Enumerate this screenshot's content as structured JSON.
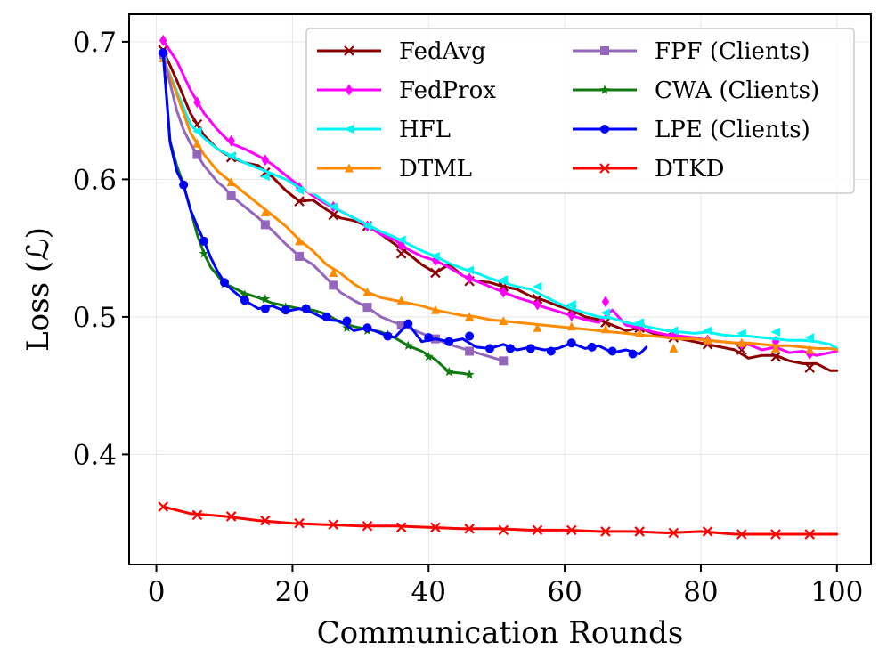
{
  "chart_data": {
    "type": "line",
    "title": "",
    "xlabel": "Communication Rounds",
    "ylabel": "Loss (ℒ)",
    "xlim": [
      -4,
      105
    ],
    "ylim": [
      0.32,
      0.72
    ],
    "xticks": [
      0,
      20,
      40,
      60,
      80,
      100
    ],
    "xtick_labels": [
      "0",
      "20",
      "40",
      "60",
      "80",
      "100"
    ],
    "yticks": [
      0.4,
      0.5,
      0.6,
      0.7
    ],
    "ytick_labels": [
      "0.4",
      "0.5",
      "0.6",
      "0.7"
    ],
    "grid": true,
    "legend_position": "top-right",
    "series": [
      {
        "name": "FedAvg",
        "color": "#8b0000",
        "marker": "x",
        "x": [
          1,
          3,
          5,
          7,
          9,
          11,
          13,
          15,
          17,
          19,
          21,
          23,
          25,
          27,
          29,
          31,
          33,
          35,
          37,
          39,
          41,
          43,
          45,
          47,
          49,
          51,
          53,
          55,
          57,
          59,
          61,
          63,
          65,
          67,
          69,
          71,
          73,
          75,
          77,
          79,
          81,
          83,
          85,
          87,
          89,
          91,
          93,
          95,
          97,
          99,
          100
        ],
        "y": [
          0.694,
          0.672,
          0.648,
          0.632,
          0.622,
          0.616,
          0.612,
          0.61,
          0.602,
          0.592,
          0.584,
          0.585,
          0.578,
          0.572,
          0.57,
          0.566,
          0.56,
          0.553,
          0.546,
          0.538,
          0.532,
          0.538,
          0.53,
          0.526,
          0.525,
          0.522,
          0.52,
          0.515,
          0.512,
          0.508,
          0.505,
          0.5,
          0.498,
          0.494,
          0.49,
          0.492,
          0.488,
          0.485,
          0.484,
          0.482,
          0.48,
          0.478,
          0.476,
          0.47,
          0.472,
          0.472,
          0.468,
          0.466,
          0.466,
          0.461,
          0.461
        ],
        "marker_x": [
          1,
          6,
          11,
          16,
          21,
          26,
          31,
          36,
          41,
          46,
          51,
          56,
          61,
          66,
          71,
          76,
          81,
          86,
          91,
          96
        ],
        "marker_y": [
          0.694,
          0.64,
          0.616,
          0.605,
          0.584,
          0.574,
          0.566,
          0.546,
          0.532,
          0.526,
          0.522,
          0.513,
          0.505,
          0.496,
          0.492,
          0.485,
          0.48,
          0.476,
          0.471,
          0.463
        ]
      },
      {
        "name": "FedProx",
        "color": "#ff00ff",
        "marker": "diamond",
        "x": [
          1,
          3,
          5,
          7,
          9,
          11,
          13,
          15,
          17,
          19,
          21,
          23,
          25,
          27,
          29,
          31,
          33,
          35,
          37,
          39,
          41,
          43,
          45,
          47,
          49,
          51,
          53,
          55,
          57,
          59,
          61,
          63,
          65,
          67,
          69,
          71,
          73,
          75,
          77,
          79,
          81,
          83,
          85,
          87,
          89,
          91,
          93,
          95,
          97,
          99,
          100
        ],
        "y": [
          0.701,
          0.686,
          0.665,
          0.648,
          0.636,
          0.626,
          0.622,
          0.617,
          0.611,
          0.603,
          0.595,
          0.588,
          0.582,
          0.577,
          0.572,
          0.566,
          0.56,
          0.556,
          0.549,
          0.544,
          0.541,
          0.536,
          0.53,
          0.526,
          0.522,
          0.518,
          0.514,
          0.511,
          0.507,
          0.504,
          0.501,
          0.498,
          0.496,
          0.505,
          0.494,
          0.492,
          0.489,
          0.487,
          0.486,
          0.485,
          0.483,
          0.482,
          0.481,
          0.48,
          0.476,
          0.478,
          0.474,
          0.475,
          0.472,
          0.474,
          0.475
        ],
        "marker_x": [
          1,
          6,
          11,
          16,
          21,
          26,
          31,
          36,
          41,
          46,
          51,
          56,
          61,
          66,
          71,
          76,
          81,
          86,
          91,
          96
        ],
        "marker_y": [
          0.701,
          0.656,
          0.628,
          0.614,
          0.594,
          0.58,
          0.566,
          0.552,
          0.541,
          0.528,
          0.518,
          0.509,
          0.501,
          0.511,
          0.492,
          0.487,
          0.483,
          0.48,
          0.482,
          0.473
        ]
      },
      {
        "name": "HFL",
        "color": "#00f5f5",
        "marker": "triangle-left",
        "x": [
          1,
          3,
          5,
          7,
          9,
          11,
          13,
          15,
          17,
          19,
          21,
          23,
          25,
          27,
          29,
          31,
          33,
          35,
          37,
          39,
          41,
          43,
          45,
          47,
          49,
          51,
          53,
          55,
          57,
          59,
          61,
          63,
          65,
          67,
          69,
          71,
          73,
          75,
          77,
          79,
          81,
          83,
          85,
          87,
          89,
          91,
          93,
          95,
          97,
          99,
          100
        ],
        "y": [
          0.688,
          0.664,
          0.64,
          0.63,
          0.622,
          0.617,
          0.612,
          0.608,
          0.604,
          0.6,
          0.594,
          0.59,
          0.583,
          0.577,
          0.572,
          0.567,
          0.562,
          0.558,
          0.553,
          0.548,
          0.544,
          0.539,
          0.535,
          0.532,
          0.528,
          0.525,
          0.522,
          0.52,
          0.515,
          0.51,
          0.506,
          0.503,
          0.5,
          0.499,
          0.496,
          0.494,
          0.492,
          0.49,
          0.489,
          0.488,
          0.489,
          0.487,
          0.486,
          0.486,
          0.485,
          0.484,
          0.483,
          0.483,
          0.482,
          0.48,
          0.477
        ],
        "marker_x": [
          1,
          6,
          11,
          16,
          21,
          26,
          31,
          36,
          41,
          46,
          51,
          56,
          61,
          66,
          71,
          76,
          81,
          86,
          91,
          96
        ],
        "marker_y": [
          0.688,
          0.635,
          0.617,
          0.602,
          0.592,
          0.58,
          0.566,
          0.556,
          0.544,
          0.534,
          0.527,
          0.522,
          0.509,
          0.503,
          0.496,
          0.49,
          0.49,
          0.488,
          0.489,
          0.485
        ]
      },
      {
        "name": "DTML",
        "color": "#ff8c00",
        "marker": "triangle-up",
        "x": [
          1,
          3,
          5,
          7,
          9,
          11,
          13,
          15,
          17,
          19,
          21,
          23,
          25,
          27,
          29,
          31,
          33,
          35,
          37,
          39,
          41,
          43,
          45,
          47,
          49,
          51,
          53,
          55,
          57,
          59,
          61,
          63,
          65,
          67,
          69,
          71,
          73,
          75,
          77,
          79,
          81,
          83,
          85,
          87,
          89,
          91,
          93,
          95,
          97,
          99,
          100
        ],
        "y": [
          0.688,
          0.662,
          0.634,
          0.618,
          0.606,
          0.598,
          0.59,
          0.582,
          0.574,
          0.566,
          0.556,
          0.548,
          0.538,
          0.532,
          0.524,
          0.518,
          0.514,
          0.512,
          0.51,
          0.508,
          0.505,
          0.503,
          0.501,
          0.5,
          0.498,
          0.497,
          0.496,
          0.495,
          0.494,
          0.493,
          0.492,
          0.491,
          0.49,
          0.489,
          0.488,
          0.487,
          0.486,
          0.485,
          0.484,
          0.484,
          0.483,
          0.482,
          0.481,
          0.481,
          0.48,
          0.479,
          0.479,
          0.478,
          0.477,
          0.477,
          0.476
        ],
        "marker_x": [
          1,
          6,
          11,
          16,
          21,
          26,
          31,
          36,
          41,
          46,
          51,
          56,
          61,
          66,
          71,
          76,
          81,
          86,
          91,
          96
        ],
        "marker_y": [
          0.688,
          0.626,
          0.598,
          0.576,
          0.555,
          0.532,
          0.518,
          0.512,
          0.505,
          0.5,
          0.497,
          0.492,
          0.493,
          0.491,
          0.488,
          0.477,
          0.483,
          0.481,
          0.477,
          0.476
        ]
      },
      {
        "name": "FPF (Clients)",
        "color": "#9467bd",
        "marker": "square",
        "x": [
          1,
          2,
          3,
          4,
          5,
          6,
          7,
          8,
          9,
          10,
          11,
          13,
          15,
          17,
          19,
          21,
          23,
          25,
          27,
          29,
          31,
          33,
          35,
          37,
          39,
          41,
          43,
          45,
          47,
          49,
          51
        ],
        "y": [
          0.691,
          0.67,
          0.65,
          0.636,
          0.626,
          0.618,
          0.61,
          0.604,
          0.598,
          0.594,
          0.588,
          0.58,
          0.572,
          0.563,
          0.553,
          0.544,
          0.538,
          0.528,
          0.518,
          0.512,
          0.507,
          0.5,
          0.496,
          0.492,
          0.488,
          0.484,
          0.48,
          0.477,
          0.474,
          0.471,
          0.468
        ],
        "marker_x": [
          1,
          6,
          11,
          16,
          21,
          26,
          31,
          36,
          41,
          46,
          51
        ],
        "marker_y": [
          0.691,
          0.618,
          0.588,
          0.567,
          0.544,
          0.523,
          0.507,
          0.494,
          0.484,
          0.475,
          0.468
        ]
      },
      {
        "name": "CWA (Clients)",
        "color": "#127a12",
        "marker": "star",
        "x": [
          1,
          2,
          3,
          4,
          5,
          6,
          7,
          8,
          9,
          10,
          11,
          13,
          15,
          17,
          19,
          21,
          23,
          25,
          27,
          29,
          31,
          33,
          35,
          37,
          39,
          41,
          43,
          45,
          46
        ],
        "y": [
          0.692,
          0.628,
          0.61,
          0.596,
          0.578,
          0.56,
          0.546,
          0.536,
          0.53,
          0.524,
          0.522,
          0.517,
          0.514,
          0.51,
          0.508,
          0.506,
          0.505,
          0.502,
          0.496,
          0.493,
          0.491,
          0.489,
          0.485,
          0.479,
          0.475,
          0.469,
          0.46,
          0.459,
          0.458
        ],
        "marker_x": [
          1,
          7,
          10,
          13,
          16,
          19,
          22,
          25,
          28,
          31,
          34,
          37,
          40,
          43,
          46
        ],
        "marker_y": [
          0.692,
          0.546,
          0.524,
          0.516,
          0.513,
          0.507,
          0.506,
          0.5,
          0.492,
          0.49,
          0.487,
          0.479,
          0.471,
          0.46,
          0.458
        ]
      },
      {
        "name": "LPE (Clients)",
        "color": "#0000ff",
        "marker": "circle",
        "x": [
          1,
          2,
          3,
          4,
          5,
          6,
          7,
          8,
          9,
          10,
          11,
          13,
          15,
          17,
          19,
          21,
          23,
          25,
          27,
          29,
          31,
          33,
          35,
          37,
          39,
          41,
          43,
          45,
          47,
          49,
          51,
          53,
          55,
          57,
          59,
          61,
          63,
          65,
          67,
          69,
          71,
          72
        ],
        "y": [
          0.692,
          0.627,
          0.606,
          0.596,
          0.578,
          0.566,
          0.555,
          0.543,
          0.533,
          0.525,
          0.52,
          0.512,
          0.506,
          0.508,
          0.504,
          0.506,
          0.503,
          0.498,
          0.497,
          0.49,
          0.492,
          0.488,
          0.485,
          0.495,
          0.482,
          0.484,
          0.482,
          0.484,
          0.478,
          0.477,
          0.48,
          0.476,
          0.478,
          0.476,
          0.477,
          0.481,
          0.477,
          0.479,
          0.474,
          0.476,
          0.473,
          0.478
        ],
        "marker_x": [
          1,
          4,
          7,
          10,
          13,
          16,
          19,
          22,
          25,
          28,
          31,
          34,
          37,
          40,
          43,
          46,
          49,
          52,
          55,
          58,
          61,
          64,
          67,
          70
        ],
        "marker_y": [
          0.692,
          0.596,
          0.555,
          0.525,
          0.512,
          0.506,
          0.505,
          0.506,
          0.5,
          0.497,
          0.492,
          0.486,
          0.495,
          0.485,
          0.482,
          0.486,
          0.477,
          0.477,
          0.477,
          0.475,
          0.481,
          0.478,
          0.475,
          0.473
        ]
      },
      {
        "name": "DTKD",
        "color": "#ff0000",
        "marker": "x",
        "x": [
          1,
          5,
          10,
          15,
          20,
          25,
          30,
          35,
          40,
          45,
          50,
          55,
          60,
          65,
          70,
          75,
          80,
          85,
          90,
          95,
          100
        ],
        "y": [
          0.362,
          0.357,
          0.355,
          0.352,
          0.35,
          0.349,
          0.348,
          0.348,
          0.347,
          0.346,
          0.346,
          0.345,
          0.345,
          0.344,
          0.344,
          0.343,
          0.344,
          0.342,
          0.342,
          0.342,
          0.342
        ],
        "marker_x": [
          1,
          6,
          11,
          16,
          21,
          26,
          31,
          36,
          41,
          46,
          51,
          56,
          61,
          66,
          71,
          76,
          81,
          86,
          91,
          96
        ],
        "marker_y": [
          0.362,
          0.356,
          0.355,
          0.352,
          0.35,
          0.349,
          0.348,
          0.347,
          0.347,
          0.346,
          0.345,
          0.345,
          0.345,
          0.344,
          0.344,
          0.343,
          0.344,
          0.342,
          0.342,
          0.342
        ]
      }
    ]
  }
}
